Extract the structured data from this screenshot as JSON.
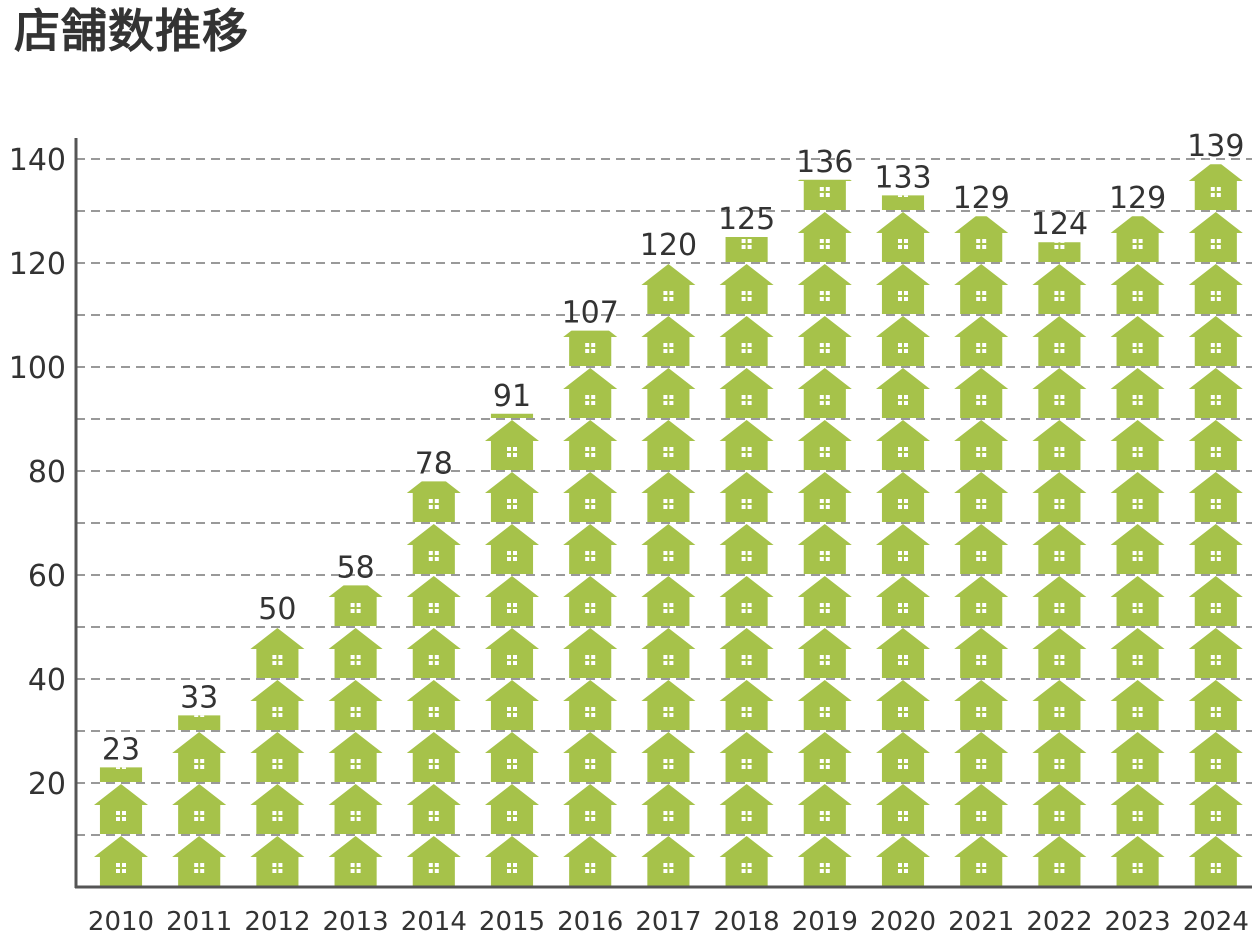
{
  "chart_data": {
    "type": "bar",
    "title": "店舗数推移",
    "xlabel": "",
    "ylabel": "",
    "categories": [
      "2010",
      "2011",
      "2012",
      "2013",
      "2014",
      "2015",
      "2016",
      "2017",
      "2018",
      "2019",
      "2020",
      "2021",
      "2022",
      "2023",
      "2024"
    ],
    "values": [
      23,
      33,
      50,
      58,
      78,
      91,
      107,
      120,
      125,
      136,
      133,
      129,
      124,
      129,
      139
    ],
    "value_labels": [
      "23",
      "33",
      "50",
      "58",
      "78",
      "91",
      "107",
      "120",
      "125",
      "136",
      "133",
      "129",
      "124",
      "129",
      "139"
    ],
    "ylim": [
      0,
      140
    ],
    "yticks": [
      20,
      40,
      60,
      80,
      100,
      120,
      140
    ],
    "ytick_labels": [
      "20",
      "40",
      "60",
      "80",
      "100",
      "120",
      "140"
    ],
    "grid": true,
    "units_per_icon": 10,
    "colors": {
      "icon": "#a6c24a",
      "axis": "#555555",
      "grid": "#999999",
      "text": "#333333"
    }
  }
}
